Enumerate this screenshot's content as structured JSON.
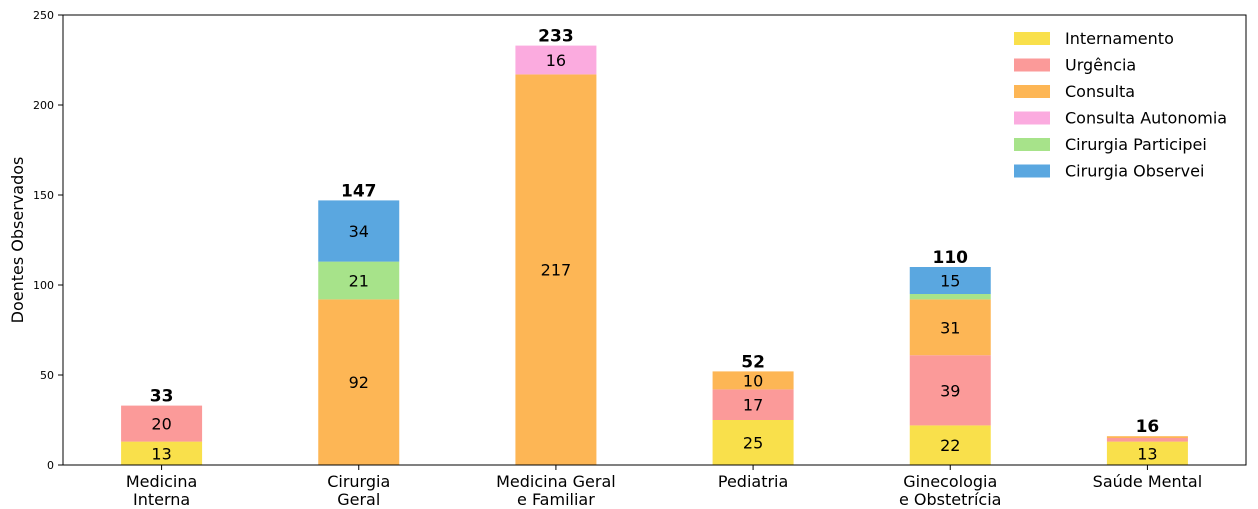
{
  "chart_data": {
    "type": "bar",
    "stacked": true,
    "title": "",
    "xlabel": "",
    "ylabel": "Doentes Observados",
    "ylim": [
      0,
      250
    ],
    "yticks": [
      0,
      50,
      100,
      150,
      200,
      250
    ],
    "grid": false,
    "legend_position": "top-right",
    "categories": [
      [
        "Medicina",
        "Interna"
      ],
      [
        "Cirurgia",
        "Geral"
      ],
      [
        "Medicina Geral",
        "e Familiar"
      ],
      [
        "Pediatria"
      ],
      [
        "Ginecologia",
        "e Obstetrícia"
      ],
      [
        "Saúde Mental"
      ]
    ],
    "series": [
      {
        "name": "Internamento",
        "color": "#f9e04b",
        "values": [
          13,
          0,
          0,
          25,
          22,
          13
        ]
      },
      {
        "name": "Urgência",
        "color": "#fb9a99",
        "values": [
          20,
          0,
          0,
          17,
          39,
          2
        ]
      },
      {
        "name": "Consulta",
        "color": "#fdb655",
        "values": [
          0,
          92,
          217,
          10,
          31,
          1
        ]
      },
      {
        "name": "Consulta Autonomia",
        "color": "#fbabdf",
        "values": [
          0,
          0,
          16,
          0,
          0,
          0
        ]
      },
      {
        "name": "Cirurgia Participei",
        "color": "#a7e38a",
        "values": [
          0,
          21,
          0,
          0,
          3,
          0
        ]
      },
      {
        "name": "Cirurgia Observei",
        "color": "#5aa7e0",
        "values": [
          0,
          34,
          0,
          0,
          15,
          0
        ]
      }
    ],
    "segment_labels": [
      [
        13,
        20,
        null,
        null,
        null,
        null
      ],
      [
        null,
        null,
        92,
        null,
        21,
        34
      ],
      [
        null,
        null,
        217,
        16,
        null,
        null
      ],
      [
        25,
        17,
        10,
        null,
        null,
        null
      ],
      [
        22,
        39,
        31,
        null,
        null,
        15
      ],
      [
        13,
        null,
        null,
        null,
        null,
        null
      ]
    ],
    "totals": [
      33,
      147,
      233,
      52,
      110,
      16
    ]
  }
}
